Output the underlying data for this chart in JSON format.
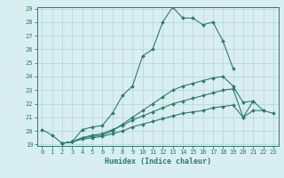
{
  "xlabel": "Humidex (Indice chaleur)",
  "x_values": [
    0,
    1,
    2,
    3,
    4,
    5,
    6,
    7,
    8,
    9,
    10,
    11,
    12,
    13,
    14,
    15,
    16,
    17,
    18,
    19,
    20,
    21,
    22,
    23
  ],
  "line1": [
    20.1,
    19.7,
    19.1,
    19.2,
    20.1,
    20.3,
    20.4,
    21.3,
    22.6,
    23.3,
    25.5,
    26.0,
    28.0,
    29.1,
    28.3,
    28.3,
    27.8,
    28.0,
    26.6,
    24.6,
    null,
    null,
    null,
    null
  ],
  "line2": [
    null,
    null,
    19.1,
    19.2,
    19.5,
    19.6,
    19.7,
    20.0,
    20.5,
    21.0,
    21.5,
    22.0,
    22.5,
    23.0,
    23.3,
    23.5,
    23.7,
    23.9,
    24.0,
    23.3,
    22.1,
    22.2,
    null,
    null
  ],
  "line3": [
    null,
    null,
    19.1,
    19.2,
    19.5,
    19.7,
    19.8,
    20.1,
    20.4,
    20.8,
    21.1,
    21.4,
    21.7,
    22.0,
    22.2,
    22.4,
    22.6,
    22.8,
    23.0,
    23.1,
    21.0,
    22.2,
    21.5,
    null
  ],
  "line4": [
    null,
    null,
    19.1,
    19.2,
    19.4,
    19.5,
    19.6,
    19.8,
    20.0,
    20.3,
    20.5,
    20.7,
    20.9,
    21.1,
    21.3,
    21.4,
    21.5,
    21.7,
    21.8,
    21.9,
    21.0,
    21.5,
    21.5,
    21.3
  ],
  "line_color": "#2d7a6e",
  "bg_color": "#d8eef0",
  "grid_color": "#b5d5d8",
  "ylim": [
    19,
    29
  ],
  "xlim": [
    -0.5,
    23.5
  ],
  "yticks": [
    19,
    20,
    21,
    22,
    23,
    24,
    25,
    26,
    27,
    28,
    29
  ],
  "xticks": [
    0,
    1,
    2,
    3,
    4,
    5,
    6,
    7,
    8,
    9,
    10,
    11,
    12,
    13,
    14,
    15,
    16,
    17,
    18,
    19,
    20,
    21,
    22,
    23
  ],
  "tick_fontsize": 5.0,
  "label_fontsize": 6.0
}
